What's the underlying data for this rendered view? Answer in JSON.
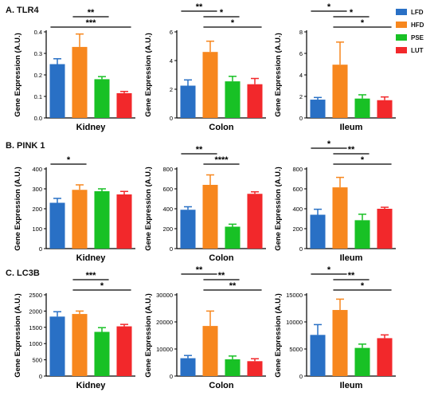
{
  "sections": [
    {
      "label": "A. TLR4"
    },
    {
      "label": "B. PINK 1"
    },
    {
      "label": "C. LC3B"
    }
  ],
  "legend": [
    {
      "label": "LFD",
      "color": "#2970c5"
    },
    {
      "label": "HFD",
      "color": "#f7871e"
    },
    {
      "label": "PSE",
      "color": "#18c125"
    },
    {
      "label": "LUT",
      "color": "#f2282b"
    }
  ],
  "chart_data": [
    {
      "type": "bar",
      "section": "A. TLR4",
      "xlabel": "Kidney",
      "ylabel": "Gene Expression (A.U.)",
      "categories": [
        "LFD",
        "HFD",
        "PSE",
        "LUT"
      ],
      "values": [
        0.25,
        0.33,
        0.18,
        0.115
      ],
      "errors": [
        0.025,
        0.06,
        0.012,
        0.008
      ],
      "ylim": [
        0,
        0.4
      ],
      "yticks": [
        "0.0",
        "0.1",
        "0.2",
        "0.3",
        "0.4"
      ],
      "significance": [
        {
          "from": 1,
          "to": 2,
          "label": "**"
        },
        {
          "from": 0,
          "to": 3,
          "label": "***"
        }
      ]
    },
    {
      "type": "bar",
      "section": "A. TLR4",
      "xlabel": "Colon",
      "ylabel": "Gene Expression (A.U.)",
      "categories": [
        "LFD",
        "HFD",
        "PSE",
        "LUT"
      ],
      "values": [
        2.25,
        4.6,
        2.55,
        2.35
      ],
      "errors": [
        0.4,
        0.75,
        0.35,
        0.4
      ],
      "ylim": [
        0,
        6
      ],
      "yticks": [
        "0",
        "2",
        "4",
        "6"
      ],
      "significance": [
        {
          "from": 0,
          "to": 1,
          "label": "**"
        },
        {
          "from": 1,
          "to": 2,
          "label": "*"
        },
        {
          "from": 1,
          "to": 3,
          "label": "*"
        }
      ]
    },
    {
      "type": "bar",
      "section": "A. TLR4",
      "xlabel": "Ileum",
      "ylabel": "Gene Expression (A.U.)",
      "categories": [
        "LFD",
        "HFD",
        "PSE",
        "LUT"
      ],
      "values": [
        1.7,
        4.95,
        1.8,
        1.65
      ],
      "errors": [
        0.2,
        2.1,
        0.35,
        0.3
      ],
      "ylim": [
        0,
        8
      ],
      "yticks": [
        "0",
        "2",
        "4",
        "6",
        "8"
      ],
      "significance": [
        {
          "from": 0,
          "to": 1,
          "label": "*"
        },
        {
          "from": 1,
          "to": 2,
          "label": "*"
        },
        {
          "from": 1,
          "to": 3,
          "label": "*"
        }
      ]
    },
    {
      "type": "bar",
      "section": "B. PINK 1",
      "xlabel": "Kidney",
      "ylabel": "Gene Expression (A.U.)",
      "categories": [
        "LFD",
        "HFD",
        "PSE",
        "LUT"
      ],
      "values": [
        230,
        295,
        288,
        272
      ],
      "errors": [
        22,
        25,
        12,
        15
      ],
      "ylim": [
        0,
        400
      ],
      "yticks": [
        "0",
        "100",
        "200",
        "300",
        "400"
      ],
      "significance": [
        {
          "from": 0,
          "to": 1,
          "label": "*"
        }
      ]
    },
    {
      "type": "bar",
      "section": "B. PINK 1",
      "xlabel": "Colon",
      "ylabel": "Gene Expression (A.U.)",
      "categories": [
        "LFD",
        "HFD",
        "PSE",
        "LUT"
      ],
      "values": [
        390,
        640,
        220,
        550
      ],
      "errors": [
        30,
        100,
        25,
        20
      ],
      "ylim": [
        0,
        800
      ],
      "yticks": [
        "0",
        "200",
        "400",
        "600",
        "800"
      ],
      "significance": [
        {
          "from": 0,
          "to": 1,
          "label": "**"
        },
        {
          "from": 1,
          "to": 2,
          "label": "****"
        }
      ]
    },
    {
      "type": "bar",
      "section": "B. PINK 1",
      "xlabel": "Ileum",
      "ylabel": "Gene Expression (A.U.)",
      "categories": [
        "LFD",
        "HFD",
        "PSE",
        "LUT"
      ],
      "values": [
        340,
        615,
        285,
        400
      ],
      "errors": [
        55,
        100,
        60,
        15
      ],
      "ylim": [
        0,
        800
      ],
      "yticks": [
        "0",
        "200",
        "400",
        "600",
        "800"
      ],
      "significance": [
        {
          "from": 0,
          "to": 1,
          "label": "*"
        },
        {
          "from": 1,
          "to": 2,
          "label": "**"
        },
        {
          "from": 1,
          "to": 3,
          "label": "*"
        }
      ]
    },
    {
      "type": "bar",
      "section": "C. LC3B",
      "xlabel": "Kidney",
      "ylabel": "Gene Expression (A.U.)",
      "categories": [
        "LFD",
        "HFD",
        "PSE",
        "LUT"
      ],
      "values": [
        1830,
        1910,
        1360,
        1530
      ],
      "errors": [
        150,
        90,
        130,
        60
      ],
      "ylim": [
        0,
        2500
      ],
      "yticks": [
        "0",
        "500",
        "1000",
        "1500",
        "2000",
        "2500"
      ],
      "significance": [
        {
          "from": 1,
          "to": 2,
          "label": "***"
        },
        {
          "from": 1,
          "to": 3,
          "label": "*"
        }
      ]
    },
    {
      "type": "bar",
      "section": "C. LC3B",
      "xlabel": "Colon",
      "ylabel": "Gene Expression (A.U.)",
      "categories": [
        "LFD",
        "HFD",
        "PSE",
        "LUT"
      ],
      "values": [
        6600,
        18500,
        6200,
        5500
      ],
      "errors": [
        1000,
        5500,
        1200,
        900
      ],
      "ylim": [
        0,
        30000
      ],
      "yticks": [
        "0",
        "10000",
        "20000",
        "30000"
      ],
      "significance": [
        {
          "from": 0,
          "to": 1,
          "label": "**"
        },
        {
          "from": 1,
          "to": 2,
          "label": "**"
        },
        {
          "from": 1,
          "to": 3,
          "label": "**"
        }
      ]
    },
    {
      "type": "bar",
      "section": "C. LC3B",
      "xlabel": "Ileum",
      "ylabel": "Gene Expression (A.U.)",
      "categories": [
        "LFD",
        "HFD",
        "PSE",
        "LUT"
      ],
      "values": [
        7600,
        12200,
        5200,
        7000
      ],
      "errors": [
        1900,
        2000,
        700,
        600
      ],
      "ylim": [
        0,
        15000
      ],
      "yticks": [
        "0",
        "5000",
        "10000",
        "15000"
      ],
      "significance": [
        {
          "from": 0,
          "to": 1,
          "label": "*"
        },
        {
          "from": 1,
          "to": 2,
          "label": "**"
        },
        {
          "from": 1,
          "to": 3,
          "label": "*"
        }
      ]
    }
  ]
}
